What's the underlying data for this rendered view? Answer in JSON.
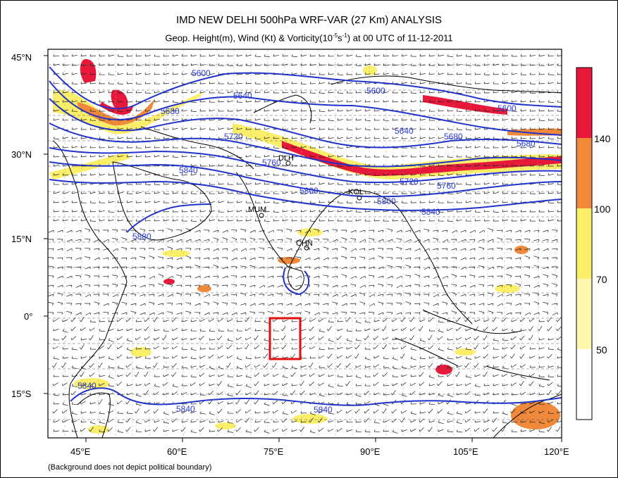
{
  "title": "IMD NEW DELHI 500hPa WRF-VAR (27 Km) ANALYSIS",
  "subtitle": {
    "pre": "Geop. Height(m), Wind (Kt) & Vorticity(10",
    "sup": "-5",
    "mid": "s",
    "sup2": "-1",
    "post": ") at 00 UTC of 11-12-2011"
  },
  "footnote": "(Background does not depict political boundary)",
  "axes": {
    "lon_ticks": [
      "45°E",
      "60°E",
      "75°E",
      "90°E",
      "105°E",
      "120°E"
    ],
    "lat_ticks": [
      "45°N",
      "30°N",
      "15°N",
      "0°",
      "15°S"
    ]
  },
  "stations": [
    "DLH",
    "MUM",
    "CHN",
    "KOL"
  ],
  "contour_labels": [
    "5600",
    "5640",
    "5680",
    "5720",
    "5760",
    "5800",
    "5840",
    "5880",
    "5600",
    "5640",
    "5680",
    "5720",
    "5760",
    "5800",
    "5840",
    "5840",
    "5840",
    "5840",
    "5680",
    "5600"
  ],
  "colorbar": {
    "levels": [
      "140",
      "100",
      "70",
      "50"
    ],
    "colors": [
      "#e8183a",
      "#f08a3a",
      "#fbef6a",
      "#fdf7b0",
      "#ffffff"
    ]
  },
  "colors": {
    "contour": "#2233cc",
    "box": "#e01010",
    "coast": "#000000"
  }
}
